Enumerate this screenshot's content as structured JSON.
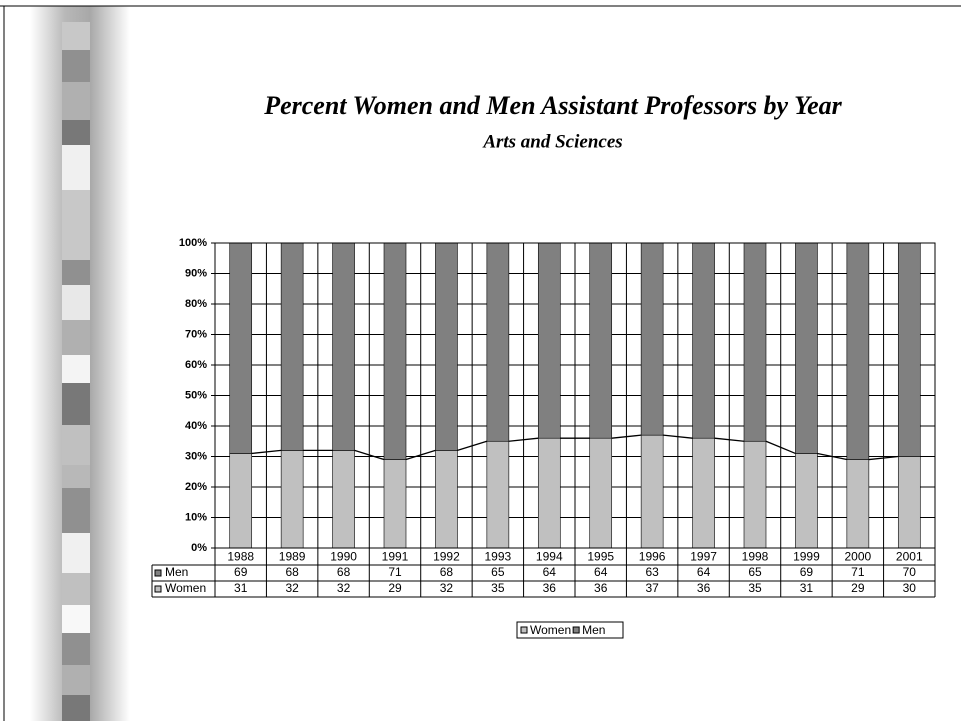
{
  "chart_data": {
    "type": "bar",
    "stacked": true,
    "title": "Percent Women and Men Assistant Professors by Year",
    "subtitle": "Arts and Sciences",
    "categories": [
      "1988",
      "1989",
      "1990",
      "1991",
      "1992",
      "1993",
      "1994",
      "1995",
      "1996",
      "1997",
      "1998",
      "1999",
      "2000",
      "2001"
    ],
    "series": [
      {
        "name": "Men",
        "color": "#808080",
        "values": [
          69,
          68,
          68,
          71,
          68,
          65,
          64,
          64,
          63,
          64,
          65,
          69,
          71,
          70
        ]
      },
      {
        "name": "Women",
        "color": "#c0c0c0",
        "values": [
          31,
          32,
          32,
          29,
          32,
          35,
          36,
          36,
          37,
          36,
          35,
          31,
          29,
          30
        ]
      }
    ],
    "ylim": [
      0,
      100
    ],
    "yticks": [
      {
        "value": 0,
        "label": "0%"
      },
      {
        "value": 10,
        "label": "10%"
      },
      {
        "value": 20,
        "label": "20%"
      },
      {
        "value": 30,
        "label": "30%"
      },
      {
        "value": 40,
        "label": "40%"
      },
      {
        "value": 50,
        "label": "50%"
      },
      {
        "value": 60,
        "label": "60%"
      },
      {
        "value": 70,
        "label": "70%"
      },
      {
        "value": 80,
        "label": "80%"
      },
      {
        "value": 90,
        "label": "90%"
      },
      {
        "value": 100,
        "label": "100%"
      }
    ],
    "grid": true,
    "xgrid": true,
    "legend": "bottom",
    "data_table": true,
    "series_lines": true
  }
}
